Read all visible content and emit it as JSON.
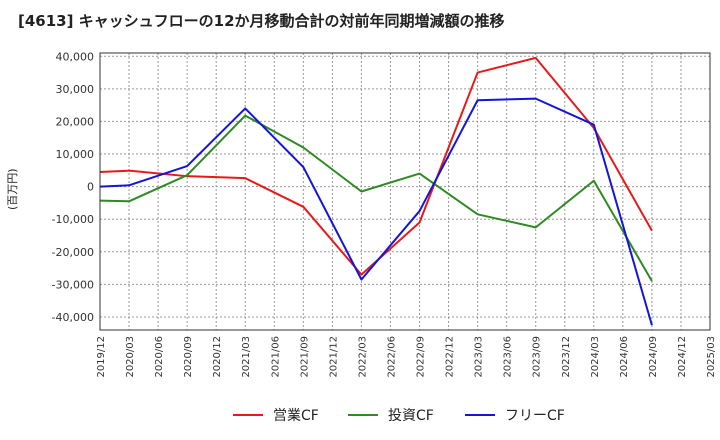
{
  "chart_data": {
    "type": "line",
    "title": "[4613]  キャッシュフローの12か月移動合計の対前年同期増減額の推移",
    "ylabel": "(百万円)",
    "xlabel": "",
    "ylim": [
      -44000,
      41000
    ],
    "yticks": [
      40000,
      30000,
      20000,
      10000,
      0,
      -10000,
      -20000,
      -30000,
      -40000
    ],
    "ytick_labels": [
      "40,000",
      "30,000",
      "20,000",
      "10,000",
      "0",
      "-10,000",
      "-20,000",
      "-30,000",
      "-40,000"
    ],
    "categories": [
      "2019/12",
      "2020/03",
      "2020/06",
      "2020/09",
      "2020/12",
      "2021/03",
      "2021/06",
      "2021/09",
      "2021/12",
      "2022/03",
      "2022/06",
      "2022/09",
      "2022/12",
      "2023/03",
      "2023/06",
      "2023/09",
      "2023/12",
      "2024/03",
      "2024/06",
      "2024/09",
      "2024/12",
      "2025/03"
    ],
    "grid": true,
    "legend_position": "bottom",
    "series": [
      {
        "name": "営業CF",
        "color": "#e8191a",
        "values": [
          4500,
          4900,
          null,
          3200,
          null,
          2600,
          null,
          -6200,
          null,
          -27000,
          null,
          -11000,
          null,
          35000,
          null,
          39500,
          null,
          18000,
          null,
          -13500,
          null,
          null
        ]
      },
      {
        "name": "投資CF",
        "color": "#2e8b22",
        "values": [
          -4300,
          -4500,
          null,
          3500,
          null,
          21800,
          null,
          12000,
          null,
          -1500,
          null,
          4000,
          null,
          -8500,
          null,
          -12500,
          null,
          1800,
          null,
          -29000,
          null,
          null
        ]
      },
      {
        "name": "フリーCF",
        "color": "#1515d8",
        "values": [
          0,
          400,
          null,
          6300,
          null,
          24000,
          null,
          6000,
          null,
          -28500,
          null,
          -7500,
          null,
          26500,
          null,
          27000,
          null,
          19000,
          null,
          -42500,
          null,
          null
        ]
      }
    ]
  }
}
